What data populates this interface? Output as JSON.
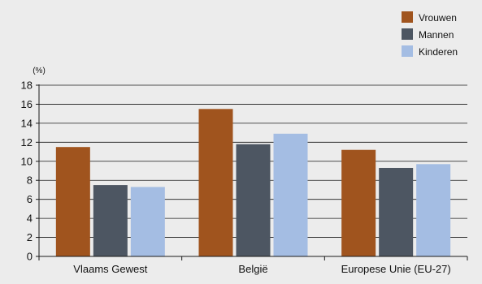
{
  "chart_data": {
    "type": "bar",
    "unit_label": "(%)",
    "categories": [
      "Vlaams Gewest",
      "België",
      "Europese Unie (EU-27)"
    ],
    "series": [
      {
        "name": "Vrouwen",
        "color": "#a0541e",
        "values": [
          11.5,
          15.5,
          11.2
        ]
      },
      {
        "name": "Mannen",
        "color": "#4d5662",
        "values": [
          7.5,
          11.8,
          9.3
        ]
      },
      {
        "name": "Kinderen",
        "color": "#a4bde3",
        "values": [
          7.3,
          12.9,
          9.7
        ]
      }
    ],
    "y_ticks": [
      "0",
      "2",
      "4",
      "6",
      "8",
      "10",
      "12",
      "14",
      "16",
      "18"
    ],
    "ylim": [
      0,
      18
    ],
    "grid": true,
    "legend_position": "top-right"
  }
}
